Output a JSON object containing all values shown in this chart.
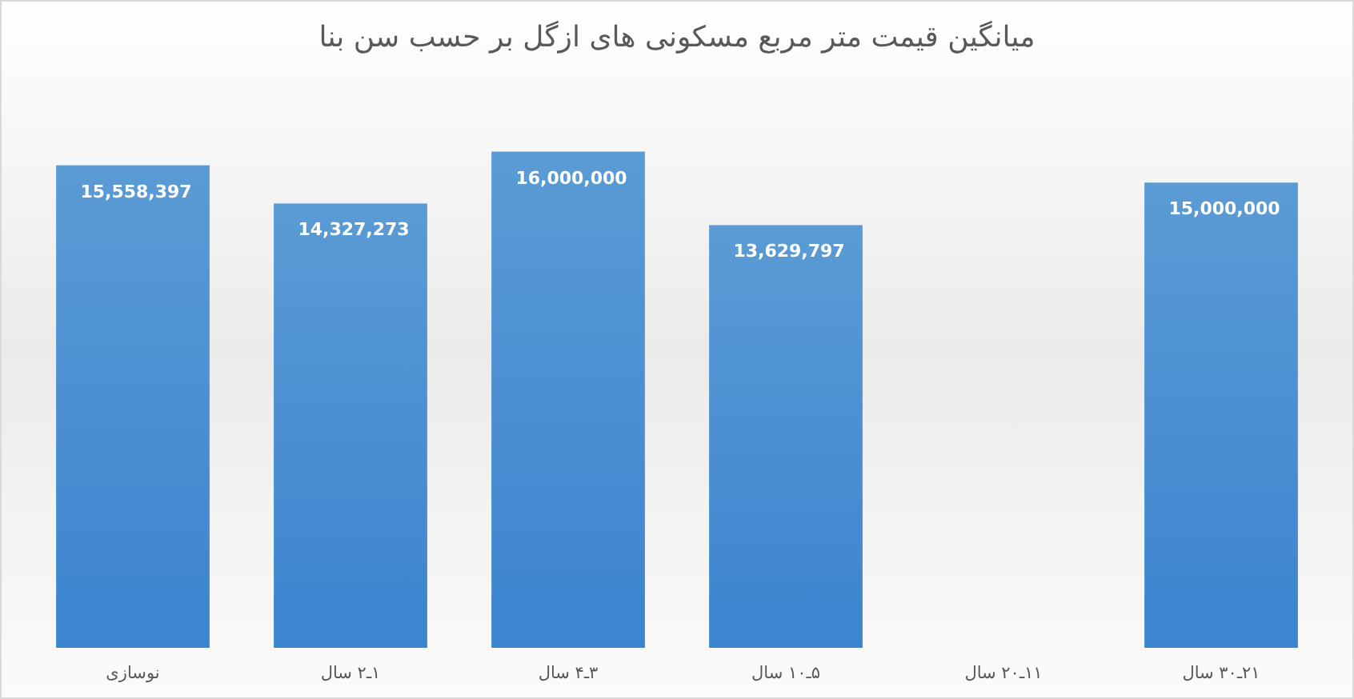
{
  "chart_data": {
    "type": "bar",
    "title": "میانگین قیمت متر مربع مسکونی های ازگل بر حسب سن بنا",
    "categories": [
      "نوسازی",
      "۱ـ۲ سال",
      "۳ـ۴ سال",
      "۵ـ۱۰ سال",
      "۱۱ـ۲۰ سال",
      "۲۱ـ۳۰ سال"
    ],
    "values": [
      15558397,
      14327273,
      16000000,
      13629797,
      null,
      15000000
    ],
    "value_labels": [
      "15,558,397",
      "14,327,273",
      "16,000,000",
      "13,629,797",
      null,
      "15,000,000"
    ],
    "color": "#5b9bd5"
  }
}
